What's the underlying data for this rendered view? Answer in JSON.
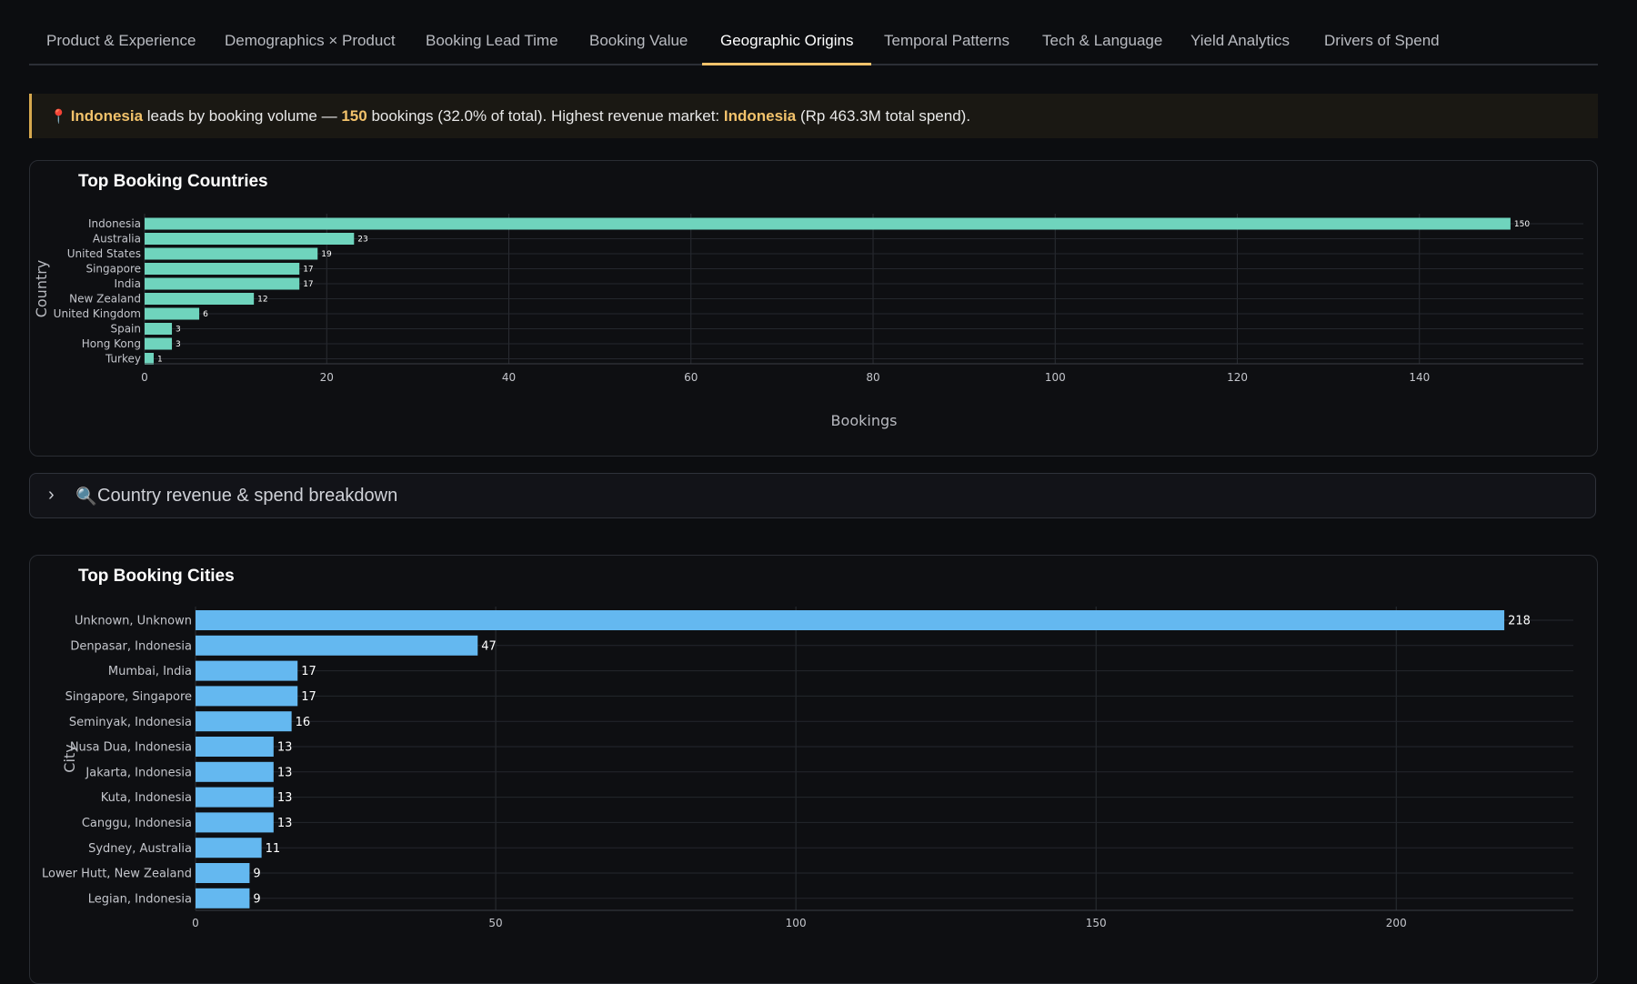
{
  "tabs": [
    {
      "label": "Product & Experience",
      "active": false
    },
    {
      "label": "Demographics × Product",
      "active": false
    },
    {
      "label": "Booking Lead Time",
      "active": false
    },
    {
      "label": "Booking Value",
      "active": false
    },
    {
      "label": "Geographic Origins",
      "active": true
    },
    {
      "label": "Temporal Patterns",
      "active": false
    },
    {
      "label": "Tech & Language",
      "active": false
    },
    {
      "label": "Yield Analytics",
      "active": false
    },
    {
      "label": "Drivers of Spend",
      "active": false
    }
  ],
  "insight": {
    "icon": "map-pin-icon",
    "country": "Indonesia",
    "text1": " leads by booking volume — ",
    "count": "150",
    "text2": " bookings (32.0% of total). Highest revenue market: ",
    "revenue_country": "Indonesia",
    "text3": " (Rp 463.3M total spend)."
  },
  "expander": {
    "icon": "magnifier-icon",
    "label": "Country revenue & spend breakdown"
  },
  "colors": {
    "countries_bar": "#6fd4bd",
    "cities_bar": "#64b8f0",
    "accent": "#f2c26b"
  },
  "chart_data": [
    {
      "type": "bar",
      "orientation": "horizontal",
      "title": "Top Booking Countries",
      "xlabel": "Bookings",
      "ylabel": "Country",
      "categories": [
        "Indonesia",
        "Australia",
        "United States",
        "Singapore",
        "India",
        "New Zealand",
        "United Kingdom",
        "Spain",
        "Hong Kong",
        "Turkey"
      ],
      "values": [
        150,
        23,
        19,
        17,
        17,
        12,
        6,
        3,
        3,
        1
      ],
      "xlim": [
        0,
        158
      ],
      "xticks": [
        0,
        20,
        40,
        60,
        80,
        100,
        120,
        140
      ],
      "grid": true
    },
    {
      "type": "bar",
      "orientation": "horizontal",
      "title": "Top Booking Cities",
      "xlabel": "",
      "ylabel": "City",
      "categories": [
        "Unknown, Unknown",
        "Denpasar, Indonesia",
        "Mumbai, India",
        "Singapore, Singapore",
        "Seminyak, Indonesia",
        "Nusa Dua, Indonesia",
        "Jakarta, Indonesia",
        "Kuta, Indonesia",
        "Canggu, Indonesia",
        "Sydney, Australia",
        "Lower Hutt, New Zealand",
        "Legian, Indonesia"
      ],
      "values": [
        218,
        47,
        17,
        17,
        16,
        13,
        13,
        13,
        13,
        11,
        9,
        9
      ],
      "xlim": [
        0,
        229.5
      ],
      "xticks": [
        0,
        50,
        100,
        150,
        200
      ],
      "grid": true
    }
  ]
}
